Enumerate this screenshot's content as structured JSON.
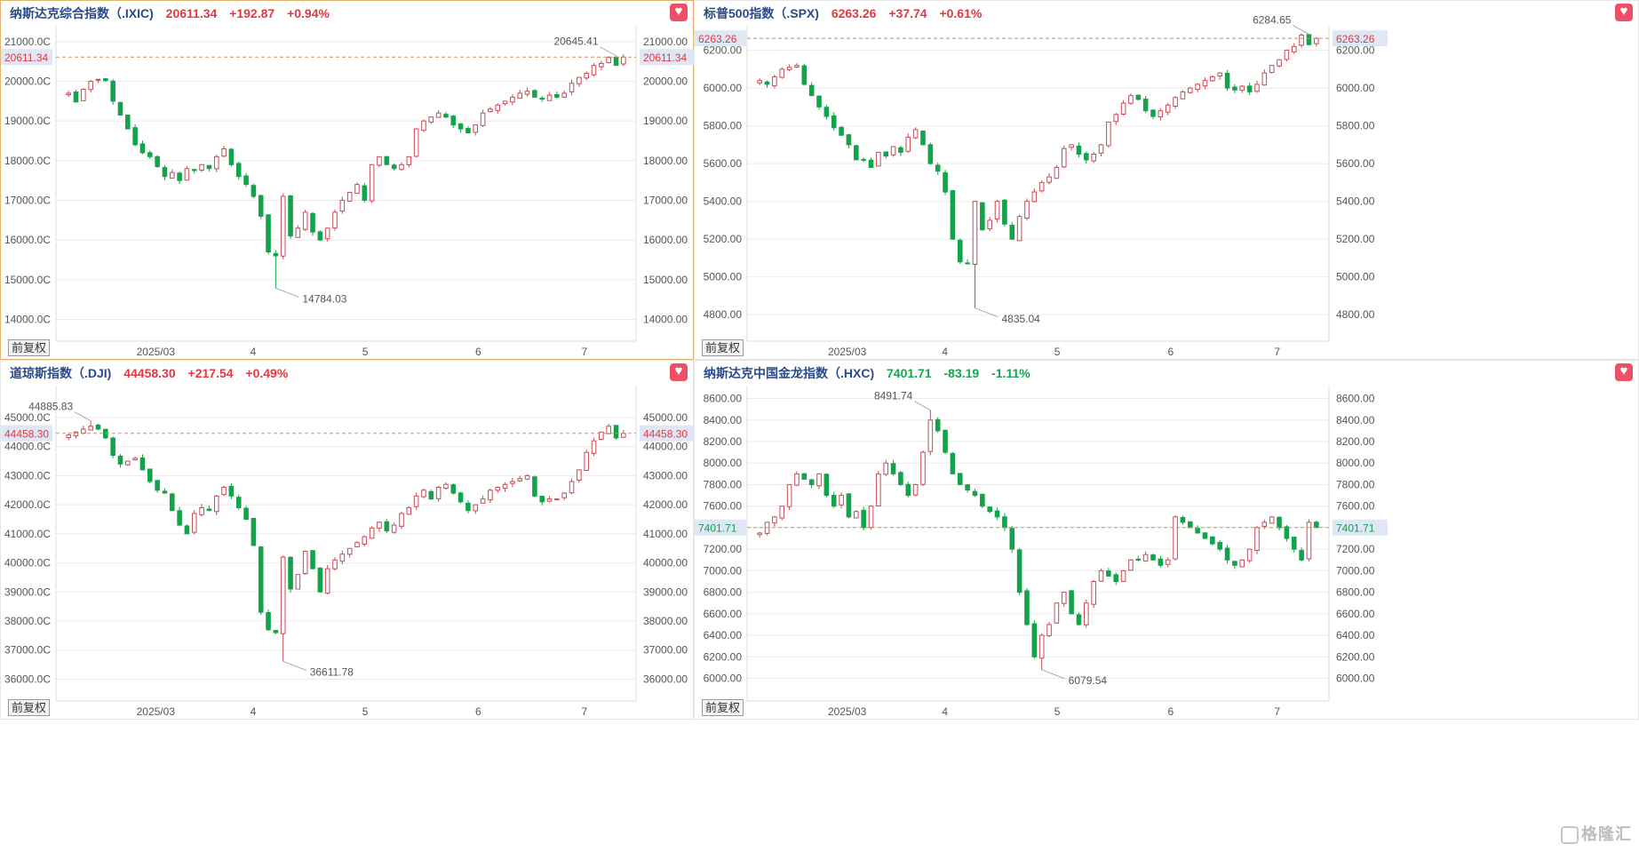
{
  "colors": {
    "up": "#c94a55",
    "down": "#13a34b",
    "ref": "#d18f52",
    "grid": "#ebebeb",
    "axis": "#555555",
    "price_tag": "#e0393e"
  },
  "common": {
    "adj_label": "前复权",
    "fav_icon": "heart-icon"
  },
  "watermark": {
    "text": "格隆汇",
    "icon": "gelonghui-logo-icon"
  },
  "panels": [
    {
      "key": "ixic",
      "active": true,
      "name": "纳斯达克综合指数（.IXIC)",
      "price": "20611.34",
      "change": "+192.87",
      "pct": "+0.94%",
      "dir": "up",
      "chart_data": {
        "type": "candlestick",
        "yticks": [
          21000,
          20000,
          19000,
          18000,
          17000,
          16000,
          15000,
          14000
        ],
        "yticks_left": [
          "21000.0C",
          "20000.0C",
          "19000.0C",
          "18000.0C",
          "17000.0C",
          "16000.0C",
          "15000.0C",
          "14000.0C"
        ],
        "yticks_right": [
          "21000.00",
          "20000.00",
          "19000.00",
          "18000.00",
          "17000.00",
          "16000.00",
          "15000.00",
          "14000.00"
        ],
        "xticks": [
          "2025/03",
          "4",
          "5",
          "6",
          "7"
        ],
        "ylim": [
          13450,
          21400
        ],
        "current": 20611.34,
        "current_label": "20611.34",
        "high": {
          "value": 20645.41,
          "label": "20645.41"
        },
        "low": {
          "value": 14784.03,
          "label": "14784.03"
        },
        "closes": [
          19700,
          19480,
          19800,
          20000,
          20050,
          20020,
          19500,
          19150,
          18800,
          18400,
          18200,
          18100,
          17850,
          17600,
          17700,
          17500,
          17800,
          17750,
          17900,
          17800,
          18100,
          18300,
          17900,
          17600,
          17400,
          17100,
          16600,
          15700,
          15600,
          17100,
          16100,
          16300,
          16700,
          16200,
          16000,
          16300,
          16700,
          17000,
          17200,
          17400,
          17000,
          17900,
          18100,
          17900,
          17800,
          17900,
          18100,
          18800,
          19000,
          19100,
          19200,
          19100,
          18900,
          18800,
          18700,
          18900,
          19200,
          19300,
          19400,
          19500,
          19600,
          19700,
          19750,
          19600,
          19550,
          19650,
          19600,
          19700,
          19950,
          20100,
          20200,
          20400,
          20450,
          20600,
          20400,
          20611.34
        ]
      }
    },
    {
      "key": "spx",
      "active": false,
      "name": "标普500指数（.SPX)",
      "price": "6263.26",
      "change": "+37.74",
      "pct": "+0.61%",
      "dir": "up",
      "chart_data": {
        "type": "candlestick",
        "yticks": [
          6200,
          6000,
          5800,
          5600,
          5400,
          5200,
          5000,
          4800
        ],
        "yticks_left": [
          "6200.00",
          "6000.00",
          "5800.00",
          "5600.00",
          "5400.00",
          "5200.00",
          "5000.00",
          "4800.00"
        ],
        "yticks_right": [
          "6200.00",
          "6000.00",
          "5800.00",
          "5600.00",
          "5400.00",
          "5200.00",
          "5000.00",
          "4800.00"
        ],
        "xticks": [
          "2025/03",
          "4",
          "5",
          "6",
          "7"
        ],
        "ylim": [
          4660,
          6330
        ],
        "current": 6263.26,
        "current_label": "6263.26",
        "high": {
          "value": 6284.65,
          "label": "6284.65"
        },
        "low": {
          "value": 4835.04,
          "label": "4835.04"
        },
        "closes": [
          6040,
          6020,
          6060,
          6100,
          6110,
          6120,
          6020,
          5960,
          5900,
          5850,
          5790,
          5750,
          5700,
          5620,
          5620,
          5580,
          5660,
          5640,
          5690,
          5660,
          5740,
          5780,
          5700,
          5600,
          5560,
          5450,
          5200,
          5080,
          5070,
          5400,
          5250,
          5300,
          5400,
          5280,
          5200,
          5320,
          5400,
          5450,
          5500,
          5530,
          5580,
          5680,
          5700,
          5650,
          5620,
          5650,
          5700,
          5820,
          5860,
          5920,
          5960,
          5940,
          5880,
          5850,
          5880,
          5910,
          5950,
          5980,
          6000,
          6020,
          6040,
          6060,
          6080,
          6000,
          5990,
          6010,
          5980,
          6020,
          6080,
          6120,
          6150,
          6200,
          6220,
          6280,
          6230,
          6263.26
        ]
      }
    },
    {
      "key": "dji",
      "active": false,
      "name": "道琼斯指数（.DJI)",
      "price": "44458.30",
      "change": "+217.54",
      "pct": "+0.49%",
      "dir": "up",
      "chart_data": {
        "type": "candlestick",
        "yticks": [
          45000,
          44000,
          43000,
          42000,
          41000,
          40000,
          39000,
          38000,
          37000,
          36000
        ],
        "yticks_left": [
          "45000.0C",
          "44000.0C",
          "43000.0C",
          "42000.0C",
          "41000.0C",
          "40000.0C",
          "39000.0C",
          "38000.0C",
          "37000.0C",
          "36000.0C"
        ],
        "yticks_right": [
          "45000.00",
          "44000.00",
          "43000.00",
          "42000.00",
          "41000.00",
          "40000.00",
          "39000.00",
          "38000.00",
          "37000.00",
          "36000.00"
        ],
        "xticks": [
          "2025/03",
          "4",
          "5",
          "6",
          "7"
        ],
        "ylim": [
          35250,
          46100
        ],
        "current": 44458.3,
        "current_label": "44458.30",
        "high": {
          "value": 44885.83,
          "label": "44885.83"
        },
        "low": {
          "value": 36611.78,
          "label": "36611.78"
        },
        "closes": [
          44400,
          44500,
          44600,
          44700,
          44600,
          44300,
          43700,
          43400,
          43500,
          43600,
          43200,
          42800,
          42500,
          42400,
          41800,
          41300,
          41000,
          41700,
          41900,
          41800,
          42300,
          42600,
          42300,
          41900,
          41500,
          40600,
          38300,
          37700,
          37600,
          40200,
          39100,
          39600,
          40400,
          39800,
          39000,
          39800,
          40100,
          40300,
          40500,
          40700,
          40900,
          41200,
          41400,
          41100,
          41300,
          41700,
          41900,
          42300,
          42500,
          42200,
          42600,
          42700,
          42400,
          42100,
          41800,
          42000,
          42200,
          42500,
          42600,
          42700,
          42800,
          42900,
          43000,
          42300,
          42100,
          42200,
          42200,
          42400,
          42800,
          43200,
          43800,
          44200,
          44500,
          44700,
          44300,
          44458.3
        ]
      }
    },
    {
      "key": "hxc",
      "active": false,
      "name": "纳斯达克中国金龙指数（.HXC)",
      "price": "7401.71",
      "change": "-83.19",
      "pct": "-1.11%",
      "dir": "down",
      "chart_data": {
        "type": "candlestick",
        "yticks": [
          8600,
          8400,
          8200,
          8000,
          7800,
          7600,
          7400,
          7200,
          7000,
          6800,
          6600,
          6400,
          6200,
          6000
        ],
        "yticks_left": [
          "8600.00",
          "8400.00",
          "8200.00",
          "8000.00",
          "7800.00",
          "7600.00",
          "7400.00",
          "7200.00",
          "7000.00",
          "6800.00",
          "6600.00",
          "6400.00",
          "6200.00",
          "6000.00"
        ],
        "yticks_right": [
          "8600.00",
          "8400.00",
          "8200.00",
          "8000.00",
          "7800.00",
          "7600.00",
          "7400.00",
          "7200.00",
          "7000.00",
          "6800.00",
          "6600.00",
          "6400.00",
          "6200.00",
          "6000.00"
        ],
        "xticks": [
          "2025/03",
          "4",
          "5",
          "6",
          "7"
        ],
        "ylim": [
          5790,
          8720
        ],
        "current": 7401.71,
        "current_label": "7401.71",
        "high": {
          "value": 8491.74,
          "label": "8491.74"
        },
        "low": {
          "value": 6079.54,
          "label": "6079.54"
        },
        "closes": [
          7350,
          7450,
          7500,
          7600,
          7800,
          7900,
          7850,
          7800,
          7900,
          7700,
          7600,
          7700,
          7500,
          7550,
          7400,
          7600,
          7900,
          8000,
          7900,
          7800,
          7700,
          7800,
          8100,
          8400,
          8300,
          8100,
          7900,
          7800,
          7750,
          7700,
          7600,
          7550,
          7500,
          7400,
          7200,
          6800,
          6500,
          6200,
          6400,
          6500,
          6700,
          6800,
          6600,
          6500,
          6700,
          6900,
          7000,
          6950,
          6900,
          7000,
          7100,
          7100,
          7150,
          7100,
          7050,
          7100,
          7500,
          7450,
          7400,
          7350,
          7300,
          7250,
          7200,
          7100,
          7050,
          7100,
          7200,
          7400,
          7450,
          7500,
          7400,
          7300,
          7200,
          7100,
          7450,
          7401.71
        ]
      }
    }
  ]
}
